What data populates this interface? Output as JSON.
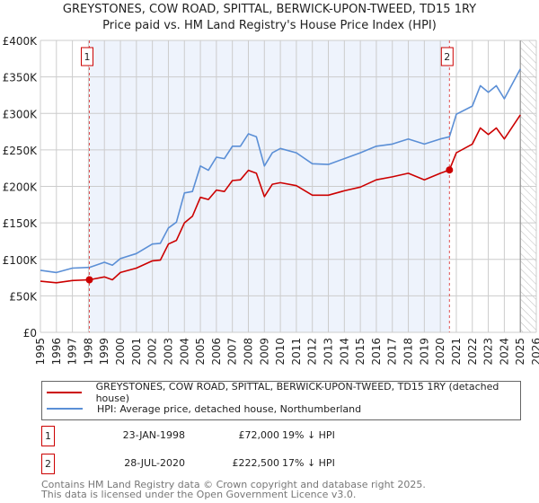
{
  "title_line1": "GREYSTONES, COW ROAD, SPITTAL, BERWICK-UPON-TWEED, TD15 1RY",
  "title_line2": "Price paid vs. HM Land Registry's House Price Index (HPI)",
  "chart_data": {
    "type": "line",
    "xlim": [
      1995,
      2026
    ],
    "ylim": [
      0,
      400000
    ],
    "x_ticks": [
      "1995",
      "1996",
      "1997",
      "1998",
      "1999",
      "2000",
      "2001",
      "2002",
      "2003",
      "2004",
      "2005",
      "2006",
      "2007",
      "2008",
      "2009",
      "2010",
      "2011",
      "2012",
      "2013",
      "2014",
      "2015",
      "2016",
      "2017",
      "2018",
      "2019",
      "2020",
      "2021",
      "2022",
      "2023",
      "2024",
      "2025",
      "2026"
    ],
    "y_ticks": [
      {
        "v": 0,
        "label": "£0"
      },
      {
        "v": 50000,
        "label": "£50K"
      },
      {
        "v": 100000,
        "label": "£100K"
      },
      {
        "v": 150000,
        "label": "£150K"
      },
      {
        "v": 200000,
        "label": "£200K"
      },
      {
        "v": 250000,
        "label": "£250K"
      },
      {
        "v": 300000,
        "label": "£300K"
      },
      {
        "v": 350000,
        "label": "£350K"
      },
      {
        "v": 400000,
        "label": "£400K"
      }
    ],
    "grid": true,
    "shaded_range": [
      1998.06,
      2020.57
    ],
    "hatched_from": 2025.0,
    "series": [
      {
        "name": "GREYSTONES, COW ROAD, SPITTAL, BERWICK-UPON-TWEED, TD15 1RY (detached house)",
        "color": "#cc0000",
        "x": [
          1995,
          1996,
          1997,
          1998.06,
          1999,
          1999.5,
          2000,
          2001,
          2002,
          2002.5,
          2003,
          2003.5,
          2004,
          2004.5,
          2005,
          2005.5,
          2006,
          2006.5,
          2007,
          2007.5,
          2008,
          2008.5,
          2009,
          2009.5,
          2010,
          2011,
          2012,
          2013,
          2014,
          2015,
          2016,
          2017,
          2018,
          2019,
          2020,
          2020.57,
          2021,
          2022,
          2022.5,
          2023,
          2023.5,
          2024,
          2025
        ],
        "y": [
          70000,
          68000,
          71000,
          72000,
          76000,
          72000,
          82000,
          88000,
          98000,
          99000,
          121000,
          126000,
          150000,
          159000,
          185000,
          182000,
          195000,
          193000,
          208000,
          209000,
          222000,
          218000,
          186000,
          203000,
          205000,
          201000,
          188000,
          188000,
          194000,
          199000,
          209000,
          213000,
          218000,
          209000,
          218000,
          222500,
          246000,
          258000,
          280000,
          271000,
          280000,
          265000,
          298000
        ]
      },
      {
        "name": "HPI: Average price, detached house, Northumberland",
        "color": "#5b8fd6",
        "x": [
          1995,
          1996,
          1997,
          1998.06,
          1999,
          1999.5,
          2000,
          2001,
          2002,
          2002.5,
          2003,
          2003.5,
          2004,
          2004.5,
          2005,
          2005.5,
          2006,
          2006.5,
          2007,
          2007.5,
          2008,
          2008.5,
          2009,
          2009.5,
          2010,
          2011,
          2012,
          2013,
          2014,
          2015,
          2016,
          2017,
          2018,
          2019,
          2020,
          2020.57,
          2021,
          2022,
          2022.5,
          2023,
          2023.5,
          2024,
          2025
        ],
        "y": [
          85000,
          82000,
          88000,
          89000,
          96000,
          92000,
          101000,
          108000,
          121000,
          122000,
          143000,
          151000,
          191000,
          193000,
          228000,
          222000,
          240000,
          238000,
          255000,
          255000,
          272000,
          268000,
          228000,
          246000,
          252000,
          246000,
          231000,
          230000,
          238000,
          246000,
          255000,
          258000,
          265000,
          258000,
          265000,
          268000,
          299000,
          310000,
          338000,
          329000,
          338000,
          320000,
          361000
        ]
      }
    ],
    "markers": [
      {
        "label": "1",
        "x": 1998.06,
        "y": 72000
      },
      {
        "label": "2",
        "x": 2020.57,
        "y": 222500
      }
    ]
  },
  "legend": [
    {
      "label": "GREYSTONES, COW ROAD, SPITTAL, BERWICK-UPON-TWEED, TD15 1RY (detached house)",
      "color": "#cc0000"
    },
    {
      "label": "HPI: Average price, detached house, Northumberland",
      "color": "#5b8fd6"
    }
  ],
  "transactions": [
    {
      "num": "1",
      "date": "23-JAN-1998",
      "price": "£72,000",
      "hpi": "19% ↓ HPI"
    },
    {
      "num": "2",
      "date": "28-JUL-2020",
      "price": "£222,500",
      "hpi": "17% ↓ HPI"
    }
  ],
  "footer_line1": "Contains HM Land Registry data © Crown copyright and database right 2025.",
  "footer_line2": "This data is licensed under the Open Government Licence v3.0."
}
